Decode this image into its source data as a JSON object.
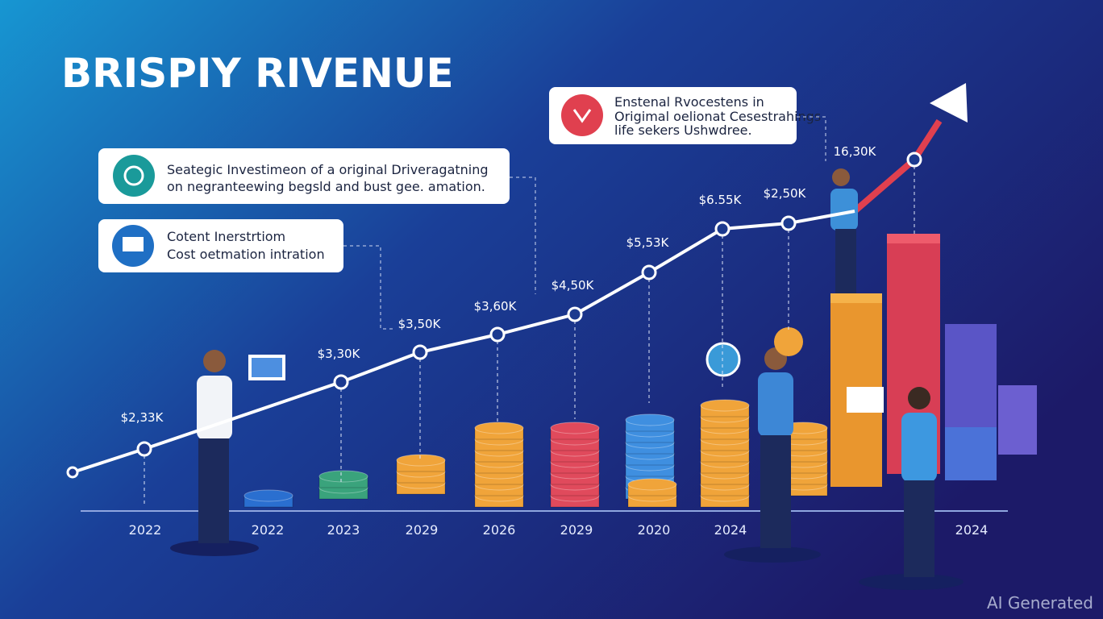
{
  "title": "BRISPIY RIVENUE",
  "callouts": [
    {
      "lines": [
        "Seategic Investimeon of a original Driveragatning",
        "on negranteewing begsld and bust gee. amation."
      ]
    },
    {
      "lines": [
        "Cotent Inerstrtiom",
        "Cost oetmation intration"
      ]
    },
    {
      "lines": [
        "Enstenal Rvocestens in",
        "Origimal oelionat Cesestrahings",
        "life sekers Ushwdree."
      ]
    }
  ],
  "point_labels": [
    "$2,33K",
    "$3,30K",
    "$3,50K",
    "$3,60K",
    "$4,50K",
    "$5,53K",
    "$6.55K",
    "$2,50K",
    "16,30K"
  ],
  "x_labels": [
    "2022",
    "2022",
    "2023",
    "2029",
    "2026",
    "2029",
    "2020",
    "2024",
    "2024"
  ],
  "watermark": "AI Generated"
}
